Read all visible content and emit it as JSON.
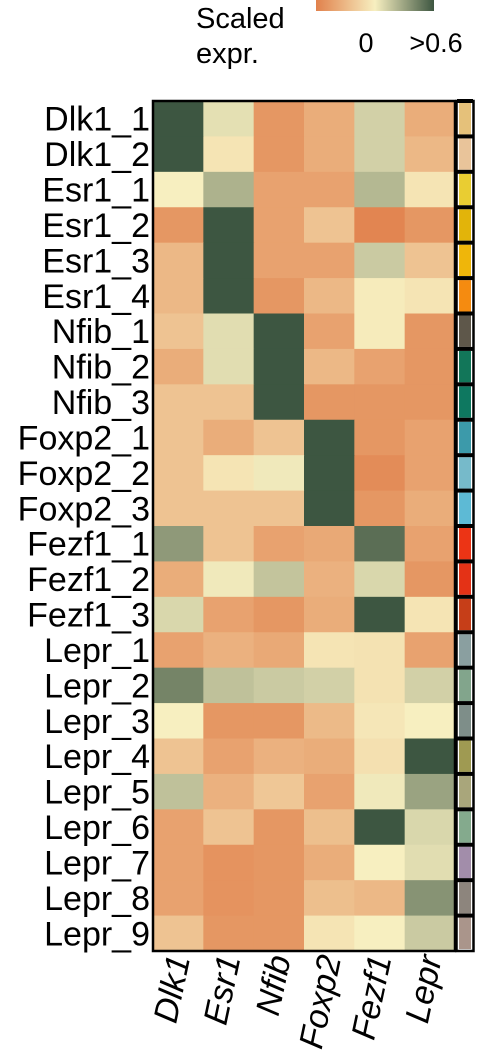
{
  "chart_data": {
    "type": "heatmap",
    "rows": [
      "Dlk1_1",
      "Dlk1_2",
      "Esr1_1",
      "Esr1_2",
      "Esr1_3",
      "Esr1_4",
      "Nfib_1",
      "Nfib_2",
      "Nfib_3",
      "Foxp2_1",
      "Foxp2_2",
      "Foxp2_3",
      "Fezf1_1",
      "Fezf1_2",
      "Fezf1_3",
      "Lepr_1",
      "Lepr_2",
      "Lepr_3",
      "Lepr_4",
      "Lepr_5",
      "Lepr_6",
      "Lepr_7",
      "Lepr_8",
      "Lepr_9"
    ],
    "columns": [
      "Dlk1",
      "Esr1",
      "Nfib",
      "Foxp2",
      "Fezf1",
      "Lepr"
    ],
    "values": [
      [
        0.6,
        0.15,
        -0.3,
        -0.2,
        0.2,
        -0.2
      ],
      [
        0.6,
        0.05,
        -0.3,
        -0.2,
        0.2,
        -0.15
      ],
      [
        0.1,
        0.3,
        -0.25,
        -0.25,
        0.28,
        0.05
      ],
      [
        -0.3,
        0.6,
        -0.25,
        -0.1,
        -0.38,
        -0.3
      ],
      [
        -0.15,
        0.6,
        -0.25,
        -0.25,
        0.22,
        -0.1
      ],
      [
        -0.15,
        0.6,
        -0.3,
        -0.15,
        0.08,
        0.05
      ],
      [
        -0.1,
        0.16,
        0.6,
        -0.25,
        0.08,
        -0.3
      ],
      [
        -0.2,
        0.16,
        0.6,
        -0.15,
        -0.25,
        -0.3
      ],
      [
        -0.1,
        -0.1,
        0.6,
        -0.3,
        -0.3,
        -0.3
      ],
      [
        -0.1,
        -0.2,
        -0.1,
        0.6,
        -0.3,
        -0.25
      ],
      [
        -0.1,
        0.05,
        0.12,
        0.6,
        -0.35,
        -0.25
      ],
      [
        -0.1,
        -0.1,
        -0.1,
        0.6,
        -0.3,
        -0.2
      ],
      [
        0.38,
        -0.1,
        -0.25,
        -0.22,
        0.52,
        -0.25
      ],
      [
        -0.2,
        0.12,
        0.24,
        -0.18,
        0.18,
        -0.3
      ],
      [
        0.18,
        -0.25,
        -0.3,
        -0.2,
        0.6,
        0.05
      ],
      [
        -0.25,
        -0.18,
        -0.22,
        0.05,
        0.04,
        -0.25
      ],
      [
        0.45,
        0.25,
        0.22,
        0.2,
        0.04,
        0.2
      ],
      [
        0.1,
        -0.3,
        -0.3,
        -0.14,
        0.06,
        0.1
      ],
      [
        -0.1,
        -0.25,
        -0.18,
        -0.2,
        0.03,
        0.6
      ],
      [
        0.25,
        -0.18,
        -0.08,
        -0.25,
        0.12,
        0.35
      ],
      [
        -0.25,
        -0.1,
        -0.3,
        -0.12,
        0.6,
        0.18
      ],
      [
        -0.25,
        -0.32,
        -0.3,
        -0.2,
        0.1,
        0.16
      ],
      [
        -0.25,
        -0.32,
        -0.3,
        -0.12,
        -0.15,
        0.4
      ],
      [
        -0.1,
        -0.3,
        -0.3,
        0.05,
        0.1,
        0.22
      ]
    ],
    "row_annotation_colors": [
      "#E5C17A",
      "#E9C49A",
      "#E9CD32",
      "#E2B40A",
      "#EFB60A",
      "#F58B10",
      "#5E574A",
      "#127659",
      "#0E7860",
      "#3C9AAA",
      "#76BACA",
      "#5DBAD5",
      "#EC3415",
      "#E43216",
      "#C63E18",
      "#8A9FA0",
      "#82A58C",
      "#7E8E89",
      "#9F9A52",
      "#A9A67B",
      "#84AA8D",
      "#A28DAA",
      "#8D857D",
      "#AA958B"
    ],
    "legend": {
      "title_line1": "Scaled",
      "title_line2": "expr.",
      "tick_min": "0",
      "tick_max": ">0.6",
      "range": [
        -0.4,
        0.6
      ]
    },
    "colors": {
      "low": "#E1814C",
      "mid": "#F7EFC0",
      "high": "#3D5641"
    }
  }
}
